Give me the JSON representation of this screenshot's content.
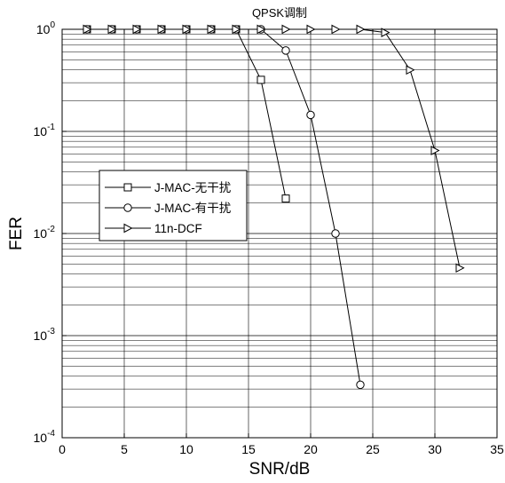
{
  "chart_data": {
    "type": "line",
    "title": "QPSK调制",
    "xlabel": "SNR/dB",
    "ylabel": "FER",
    "xlim": [
      0,
      35
    ],
    "ylim": [
      0.0001,
      1
    ],
    "yscale": "log",
    "grid": true,
    "legend_position": "middle-left",
    "x_ticks": [
      "0",
      "5",
      "10",
      "15",
      "20",
      "25",
      "30",
      "35"
    ],
    "y_ticks": [
      {
        "base": "10",
        "exp": "-4"
      },
      {
        "base": "10",
        "exp": "-3"
      },
      {
        "base": "10",
        "exp": "-2"
      },
      {
        "base": "10",
        "exp": "-1"
      },
      {
        "base": "10",
        "exp": "0"
      }
    ],
    "series": [
      {
        "name": "J-MAC-无干扰",
        "marker": "square",
        "x": [
          2,
          4,
          6,
          8,
          10,
          12,
          14,
          16,
          18
        ],
        "y": [
          1,
          1,
          1,
          1,
          1,
          1,
          1,
          0.32,
          0.022
        ]
      },
      {
        "name": "J-MAC-有干扰",
        "marker": "circle",
        "x": [
          2,
          4,
          6,
          8,
          10,
          12,
          14,
          16,
          18,
          20,
          22,
          24
        ],
        "y": [
          1,
          1,
          1,
          1,
          1,
          1,
          1,
          1,
          0.62,
          0.145,
          0.01,
          0.00033
        ]
      },
      {
        "name": "11n-DCF",
        "marker": "triangle-right",
        "x": [
          2,
          4,
          6,
          8,
          10,
          12,
          14,
          16,
          18,
          20,
          22,
          24,
          26,
          28,
          30,
          32
        ],
        "y": [
          1,
          1,
          1,
          1,
          1,
          1,
          1,
          1,
          1,
          1,
          1,
          1,
          0.93,
          0.4,
          0.065,
          0.0046
        ]
      }
    ]
  }
}
